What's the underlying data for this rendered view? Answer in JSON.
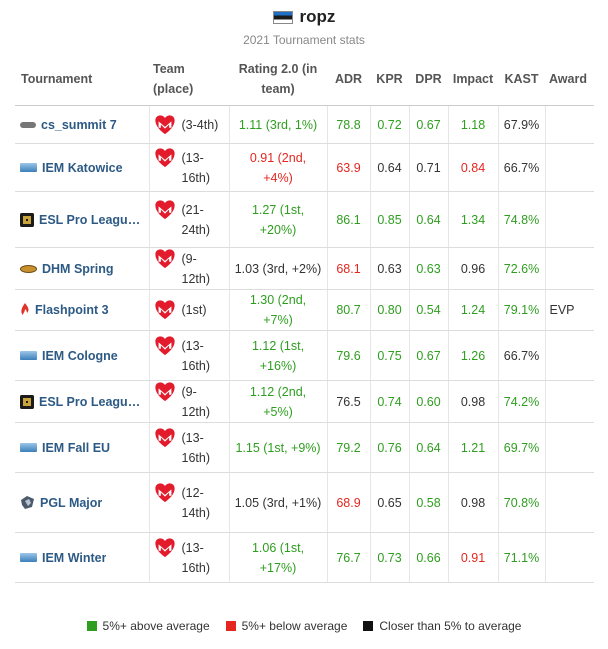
{
  "header": {
    "player_name": "ropz",
    "subtitle": "2021 Tournament stats",
    "flag_icon": "estonia-flag-icon"
  },
  "table": {
    "columns": {
      "tournament": "Tournament",
      "team": "Team (place)",
      "rating": "Rating 2.0 (in team)",
      "adr": "ADR",
      "kpr": "KPR",
      "dpr": "DPR",
      "impact": "Impact",
      "kast": "KAST",
      "award": "Award"
    },
    "rows": [
      {
        "tournament": "cs_summit 7",
        "icon": "summit",
        "place": "(3-4th)",
        "rating": "1.11 (3rd, 1%)",
        "rating_color": "green",
        "adr": "78.8",
        "adr_color": "green",
        "kpr": "0.72",
        "kpr_color": "green",
        "dpr": "0.67",
        "dpr_color": "green",
        "impact": "1.18",
        "impact_color": "green",
        "kast": "67.9%",
        "kast_color": "black",
        "award": ""
      },
      {
        "tournament": "IEM Katowice",
        "icon": "iem",
        "place": "(13-16th)",
        "rating": "0.91 (2nd, +4%)",
        "rating_color": "red",
        "adr": "63.9",
        "adr_color": "red",
        "kpr": "0.64",
        "kpr_color": "black",
        "dpr": "0.71",
        "dpr_color": "black",
        "impact": "0.84",
        "impact_color": "red",
        "kast": "66.7%",
        "kast_color": "black",
        "award": ""
      },
      {
        "tournament": "ESL Pro League S...",
        "icon": "esl",
        "place": "(21-24th)",
        "rating": "1.27 (1st, +20%)",
        "rating_color": "green",
        "adr": "86.1",
        "adr_color": "green",
        "kpr": "0.85",
        "kpr_color": "green",
        "dpr": "0.64",
        "dpr_color": "green",
        "impact": "1.34",
        "impact_color": "green",
        "kast": "74.8%",
        "kast_color": "green",
        "award": ""
      },
      {
        "tournament": "DHM Spring",
        "icon": "dhm",
        "place": "(9-12th)",
        "rating": "1.03 (3rd, +2%)",
        "rating_color": "black",
        "adr": "68.1",
        "adr_color": "red",
        "kpr": "0.63",
        "kpr_color": "black",
        "dpr": "0.63",
        "dpr_color": "green",
        "impact": "0.96",
        "impact_color": "black",
        "kast": "72.6%",
        "kast_color": "green",
        "award": ""
      },
      {
        "tournament": "Flashpoint 3",
        "icon": "fp",
        "place": "(1st)",
        "rating": "1.30 (2nd, +7%)",
        "rating_color": "green",
        "adr": "80.7",
        "adr_color": "green",
        "kpr": "0.80",
        "kpr_color": "green",
        "dpr": "0.54",
        "dpr_color": "green",
        "impact": "1.24",
        "impact_color": "green",
        "kast": "79.1%",
        "kast_color": "green",
        "award": "EVP"
      },
      {
        "tournament": "IEM Cologne",
        "icon": "iem",
        "place": "(13-16th)",
        "rating": "1.12 (1st, +16%)",
        "rating_color": "green",
        "adr": "79.6",
        "adr_color": "green",
        "kpr": "0.75",
        "kpr_color": "green",
        "dpr": "0.67",
        "dpr_color": "green",
        "impact": "1.26",
        "impact_color": "green",
        "kast": "66.7%",
        "kast_color": "black",
        "award": ""
      },
      {
        "tournament": "ESL Pro League S...",
        "icon": "esl",
        "place": "(9-12th)",
        "rating": "1.12 (2nd, +5%)",
        "rating_color": "green",
        "adr": "76.5",
        "adr_color": "black",
        "kpr": "0.74",
        "kpr_color": "green",
        "dpr": "0.60",
        "dpr_color": "green",
        "impact": "0.98",
        "impact_color": "black",
        "kast": "74.2%",
        "kast_color": "green",
        "award": ""
      },
      {
        "tournament": "IEM Fall EU",
        "icon": "iem",
        "place": "(13-16th)",
        "rating": "1.15 (1st, +9%)",
        "rating_color": "green",
        "adr": "79.2",
        "adr_color": "green",
        "kpr": "0.76",
        "kpr_color": "green",
        "dpr": "0.64",
        "dpr_color": "green",
        "impact": "1.21",
        "impact_color": "green",
        "kast": "69.7%",
        "kast_color": "green",
        "award": ""
      },
      {
        "tournament": "PGL Major",
        "icon": "pgl",
        "place": "(12-14th)",
        "rating": "1.05 (3rd, +1%)",
        "rating_color": "black",
        "adr": "68.9",
        "adr_color": "red",
        "kpr": "0.65",
        "kpr_color": "black",
        "dpr": "0.58",
        "dpr_color": "green",
        "impact": "0.98",
        "impact_color": "black",
        "kast": "70.8%",
        "kast_color": "green",
        "award": ""
      },
      {
        "tournament": "IEM Winter",
        "icon": "iem",
        "place": "(13-16th)",
        "rating": "1.06 (1st, +17%)",
        "rating_color": "green",
        "adr": "76.7",
        "adr_color": "green",
        "kpr": "0.73",
        "kpr_color": "green",
        "dpr": "0.66",
        "dpr_color": "green",
        "impact": "0.91",
        "impact_color": "red",
        "kast": "71.1%",
        "kast_color": "green",
        "award": ""
      }
    ]
  },
  "legend": [
    {
      "label": "5%+ above average",
      "color": "#2e9e1f"
    },
    {
      "label": "5%+ below average",
      "color": "#e3261f"
    },
    {
      "label": "Closer than 5% to average",
      "color": "#111111"
    }
  ],
  "team_icon": "mouz-logo-icon"
}
